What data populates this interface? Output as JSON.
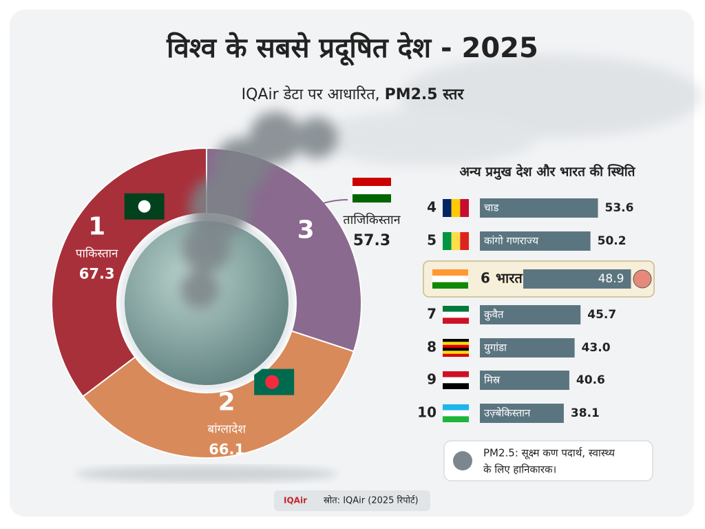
{
  "title": "विश्व के सबसे प्रदूषित देश - 2025",
  "subtitle": [
    "IQAir डेटा पर आधारित,",
    "PM2.5 स्तर"
  ],
  "chart_data": [
    {
      "type": "pie",
      "ranks": [
        3,
        2,
        1
      ],
      "categories": [
        "ताजिकिस्तान",
        "बांग्लादेश",
        "पाकिस्तान"
      ],
      "values": [
        57.3,
        66.1,
        67.3
      ],
      "colors": [
        "#8a6a8f",
        "#d98a5a",
        "#a8303a"
      ]
    },
    {
      "type": "bar",
      "title": "अन्य प्रमुख देश और भारत की स्थिति",
      "ranks": [
        4,
        5,
        6,
        7,
        8,
        9,
        10
      ],
      "categories": [
        "चाड",
        "कांगो गणराज्य",
        "भारत",
        "कुवैत",
        "युगांडा",
        "मिस्र",
        "उज़्बेकिस्तान"
      ],
      "values": [
        53.6,
        50.2,
        48.9,
        45.7,
        43.0,
        40.6,
        38.1
      ],
      "value_labels": [
        "53.6",
        "50.2",
        "48.9",
        "45.7",
        "43.0",
        "40.6",
        "38.1"
      ],
      "color": "#5b7580",
      "highlight_index": 2
    }
  ],
  "note": [
    "PM2.5: सूक्ष्म कण पदार्थ, स्वास्थ्य",
    "के लिए हानिकारक।"
  ],
  "footer": {
    "logo": "IQAir",
    "source": "स्रोत: IQAir (2025 रिपोर्ट)"
  }
}
